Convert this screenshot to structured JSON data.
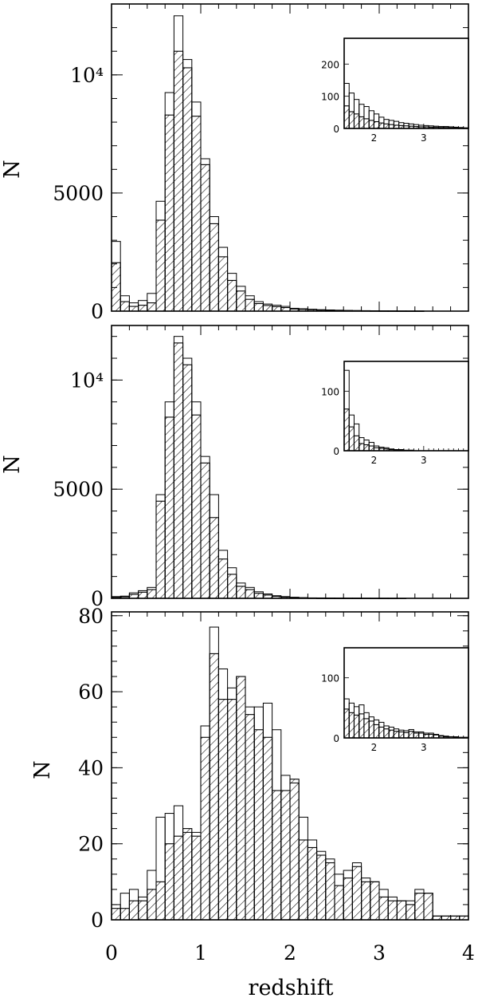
{
  "chart_data": [
    {
      "type": "bar",
      "panel": "top",
      "ylabel": "N",
      "xlabel": "",
      "xlim": [
        0,
        4
      ],
      "ylim": [
        0,
        13000
      ],
      "yticks": [
        {
          "value": 0,
          "label": "0"
        },
        {
          "value": 5000,
          "label": "5000"
        },
        {
          "value": 10000,
          "label": "10⁴"
        }
      ],
      "bin_width": 0.1,
      "series": [
        {
          "style": "open",
          "values": [
            2950,
            650,
            350,
            450,
            750,
            4650,
            9250,
            12500,
            10650,
            8850,
            6450,
            4000,
            2700,
            1600,
            1050,
            650,
            400,
            300,
            250,
            200,
            120,
            100,
            80,
            60,
            50,
            40,
            30,
            25,
            20,
            15,
            10,
            10,
            5,
            5,
            5,
            0,
            0,
            0,
            0,
            0
          ]
        },
        {
          "style": "hatched",
          "values": [
            2050,
            400,
            200,
            250,
            350,
            3850,
            8300,
            11000,
            10300,
            8250,
            6200,
            3700,
            2300,
            1300,
            850,
            500,
            320,
            240,
            190,
            150,
            90,
            75,
            60,
            45,
            35,
            30,
            22,
            18,
            14,
            11,
            8,
            7,
            4,
            3,
            3,
            0,
            0,
            0,
            0,
            0
          ]
        }
      ],
      "inset": {
        "xlim": [
          1.4,
          3.9
        ],
        "ylim": [
          0,
          280
        ],
        "xticks": [
          {
            "value": 2,
            "label": "2"
          },
          {
            "value": 3,
            "label": "3"
          }
        ],
        "yticks": [
          {
            "value": 0,
            "label": "0"
          },
          {
            "value": 100,
            "label": "100"
          },
          {
            "value": 200,
            "label": "200"
          }
        ],
        "bin_width": 0.1,
        "x_start": 1.4,
        "series": [
          {
            "style": "open",
            "values": [
              140,
              110,
              90,
              75,
              68,
              55,
              45,
              35,
              28,
              25,
              22,
              18,
              16,
              14,
              12,
              10,
              9,
              8,
              7,
              6,
              6,
              5,
              4,
              3,
              2
            ]
          },
          {
            "style": "hatched",
            "values": [
              70,
              52,
              45,
              36,
              30,
              25,
              21,
              17,
              14,
              12,
              10,
              9,
              8,
              7,
              6,
              5,
              5,
              4,
              4,
              3,
              3,
              2,
              2,
              1,
              1
            ]
          }
        ]
      }
    },
    {
      "type": "bar",
      "panel": "middle",
      "ylabel": "N",
      "xlabel": "",
      "xlim": [
        0,
        4
      ],
      "ylim": [
        0,
        12500
      ],
      "yticks": [
        {
          "value": 0,
          "label": "0"
        },
        {
          "value": 5000,
          "label": "5000"
        },
        {
          "value": 10000,
          "label": "10⁴"
        }
      ],
      "bin_width": 0.1,
      "series": [
        {
          "style": "open",
          "values": [
            80,
            100,
            250,
            350,
            500,
            4750,
            9000,
            12000,
            11000,
            9000,
            6500,
            4750,
            2200,
            1400,
            700,
            500,
            300,
            200,
            120,
            80,
            50,
            30,
            20,
            15,
            10,
            8,
            5,
            5,
            3,
            2,
            2,
            1,
            1,
            0,
            0,
            0,
            0,
            0,
            0,
            0
          ]
        },
        {
          "style": "hatched",
          "values": [
            50,
            70,
            180,
            280,
            400,
            4450,
            8300,
            11700,
            10700,
            8400,
            6200,
            3700,
            1800,
            1100,
            550,
            400,
            230,
            150,
            90,
            60,
            35,
            22,
            15,
            10,
            7,
            5,
            4,
            3,
            2,
            1,
            1,
            1,
            0,
            0,
            0,
            0,
            0,
            0,
            0,
            0
          ]
        }
      ],
      "inset": {
        "xlim": [
          1.4,
          3.9
        ],
        "ylim": [
          0,
          150
        ],
        "xticks": [
          {
            "value": 2,
            "label": "2"
          },
          {
            "value": 3,
            "label": "3"
          }
        ],
        "yticks": [
          {
            "value": 0,
            "label": "0"
          },
          {
            "value": 100,
            "label": "100"
          }
        ],
        "bin_width": 0.1,
        "x_start": 1.4,
        "series": [
          {
            "style": "open",
            "values": [
              135,
              60,
              45,
              22,
              18,
              14,
              8,
              6,
              5,
              3,
              2,
              2,
              1,
              1,
              0,
              0,
              0,
              0,
              0,
              0,
              0,
              0,
              0,
              0,
              0
            ]
          },
          {
            "style": "hatched",
            "values": [
              70,
              40,
              25,
              12,
              10,
              8,
              5,
              4,
              3,
              2,
              1,
              1,
              0,
              0,
              0,
              0,
              0,
              0,
              0,
              0,
              0,
              0,
              0,
              0,
              0
            ]
          }
        ]
      }
    },
    {
      "type": "bar",
      "panel": "bottom",
      "ylabel": "N",
      "xlabel": "redshift",
      "xlim": [
        0,
        4
      ],
      "ylim": [
        0,
        81
      ],
      "xticks": [
        {
          "value": 0,
          "label": "0"
        },
        {
          "value": 1,
          "label": "1"
        },
        {
          "value": 2,
          "label": "2"
        },
        {
          "value": 3,
          "label": "3"
        },
        {
          "value": 4,
          "label": "4"
        }
      ],
      "yticks": [
        {
          "value": 0,
          "label": "0"
        },
        {
          "value": 20,
          "label": "20"
        },
        {
          "value": 40,
          "label": "40"
        },
        {
          "value": 60,
          "label": "60"
        },
        {
          "value": 80,
          "label": "80"
        }
      ],
      "bin_width": 0.1,
      "series": [
        {
          "style": "open",
          "values": [
            4,
            7,
            8,
            6,
            13,
            27,
            28,
            30,
            23,
            23,
            51,
            77,
            66,
            61,
            64,
            56,
            56,
            57,
            50,
            38,
            36,
            27,
            21,
            18,
            16,
            12,
            13,
            15,
            11,
            10,
            8,
            6,
            5,
            5,
            8,
            7,
            1,
            1,
            1,
            1
          ]
        },
        {
          "style": "hatched",
          "values": [
            3,
            3,
            5,
            5,
            8,
            10,
            20,
            22,
            24,
            22,
            48,
            70,
            58,
            58,
            64,
            54,
            50,
            48,
            34,
            34,
            37,
            21,
            19,
            17,
            15,
            9,
            11,
            14,
            10,
            10,
            6,
            5,
            5,
            4,
            7,
            7,
            1,
            1,
            1,
            1
          ]
        }
      ],
      "inset": {
        "xlim": [
          1.4,
          3.9
        ],
        "ylim": [
          0,
          150
        ],
        "xticks": [
          {
            "value": 2,
            "label": "2"
          },
          {
            "value": 3,
            "label": "3"
          }
        ],
        "yticks": [
          {
            "value": 0,
            "label": "0"
          },
          {
            "value": 100,
            "label": "100"
          }
        ],
        "bin_width": 0.1,
        "x_start": 1.4,
        "series": [
          {
            "style": "open",
            "values": [
              65,
              58,
              52,
              55,
              42,
              35,
              30,
              26,
              20,
              18,
              15,
              13,
              12,
              14,
              10,
              10,
              8,
              8,
              6,
              4,
              3,
              2,
              2,
              1,
              1
            ]
          },
          {
            "style": "hatched",
            "values": [
              48,
              42,
              38,
              40,
              32,
              28,
              22,
              18,
              15,
              13,
              11,
              10,
              9,
              11,
              8,
              8,
              6,
              6,
              5,
              3,
              2,
              2,
              1,
              1,
              1
            ]
          }
        ]
      }
    }
  ]
}
